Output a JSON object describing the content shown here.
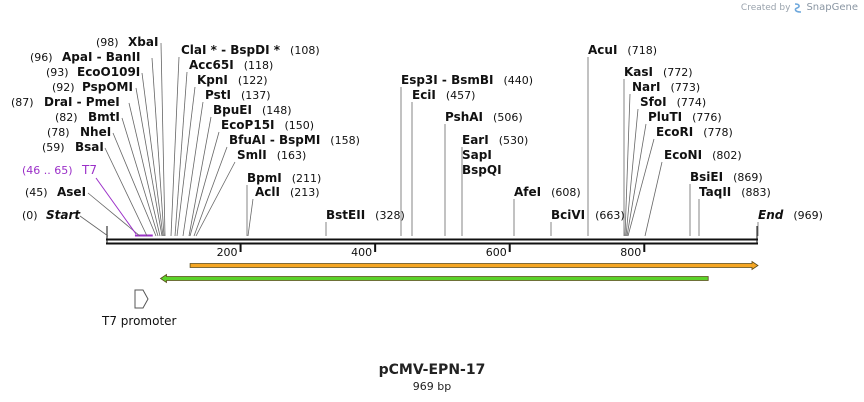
{
  "watermark": {
    "created_by": "Created by",
    "brand": "SnapGene"
  },
  "title": "pCMV-EPN-17",
  "length_label": "969 bp",
  "sequence_length": 969,
  "ruler_ticks": [
    "200",
    "400",
    "600",
    "800"
  ],
  "features": {
    "t7_site": {
      "name": "T7",
      "range": "(46 .. 65)",
      "start": 46,
      "end": 65,
      "color": "#9b30c8"
    },
    "t7_promoter": {
      "label": "T7 promoter"
    },
    "orange_arrow": {
      "start": 125,
      "end": 969,
      "direction": "forward",
      "color": "#f5a623"
    },
    "green_arrow": {
      "start": 81,
      "end": 895,
      "direction": "reverse",
      "color": "#5cd32a"
    }
  },
  "sites": [
    {
      "label": "Start",
      "pos": "(0)",
      "left": true,
      "italic": true
    },
    {
      "label": "AseI",
      "pos": "(45)",
      "left": true
    },
    {
      "label": "BsaI",
      "pos": "(59)",
      "left": true
    },
    {
      "label": "NheI",
      "pos": "(78)",
      "left": true
    },
    {
      "label": "BmtI",
      "pos": "(82)",
      "left": true
    },
    {
      "label": "DraI - PmeI",
      "pos": "(87)",
      "left": true
    },
    {
      "label": "PspOMI",
      "pos": "(92)",
      "left": true
    },
    {
      "label": "EcoO109I",
      "pos": "(93)",
      "left": true
    },
    {
      "label": "ApaI - BanII",
      "pos": "(96)",
      "left": true
    },
    {
      "label": "XbaI",
      "pos": "(98)",
      "left": true
    },
    {
      "label": "ClaI * - BspDI *",
      "pos": "(108)"
    },
    {
      "label": "Acc65I",
      "pos": "(118)"
    },
    {
      "label": "KpnI",
      "pos": "(122)"
    },
    {
      "label": "PstI",
      "pos": "(137)"
    },
    {
      "label": "BpuEI",
      "pos": "(148)"
    },
    {
      "label": "EcoP15I",
      "pos": "(150)"
    },
    {
      "label": "BfuAI - BspMI",
      "pos": "(158)"
    },
    {
      "label": "SmlI",
      "pos": "(163)"
    },
    {
      "label": "BpmI",
      "pos": "(211)"
    },
    {
      "label": "AclI",
      "pos": "(213)"
    },
    {
      "label": "BstEII",
      "pos": "(328)"
    },
    {
      "label": "Esp3I - BsmBI",
      "pos": "(440)"
    },
    {
      "label": "EciI",
      "pos": "(457)"
    },
    {
      "label": "PshAI",
      "pos": "(506)"
    },
    {
      "label": "EarI",
      "pos": "(530)"
    },
    {
      "label": "SapI",
      "pos": ""
    },
    {
      "label": "BspQI",
      "pos": ""
    },
    {
      "label": "AfeI",
      "pos": "(608)"
    },
    {
      "label": "BciVI",
      "pos": "(663)"
    },
    {
      "label": "AcuI",
      "pos": "(718)"
    },
    {
      "label": "KasI",
      "pos": "(772)"
    },
    {
      "label": "NarI",
      "pos": "(773)"
    },
    {
      "label": "SfoI",
      "pos": "(774)"
    },
    {
      "label": "PluTI",
      "pos": "(776)"
    },
    {
      "label": "EcoRI",
      "pos": "(778)"
    },
    {
      "label": "EcoNI",
      "pos": "(802)"
    },
    {
      "label": "BsiEI",
      "pos": "(869)"
    },
    {
      "label": "TaqII",
      "pos": "(883)"
    },
    {
      "label": "End",
      "pos": "(969)",
      "italic": true
    }
  ]
}
